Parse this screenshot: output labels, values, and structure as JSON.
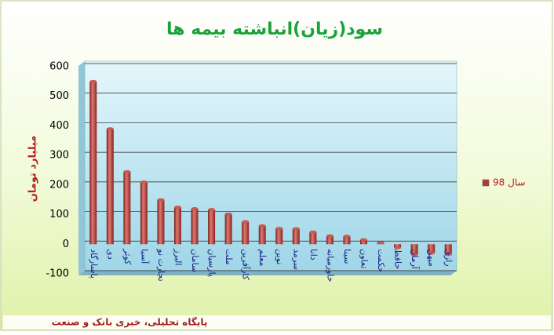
{
  "chart_data": {
    "type": "bar",
    "title": "سود(زیان)انباشته بیمه ها",
    "y_label": "میلیارد تومان",
    "categories": [
      "پاسارگاد",
      "دی",
      "کوثر",
      "آسیا",
      "تجارت نو",
      "البرز",
      "سامان",
      "پارسیان",
      "ملت",
      "کارآفرین",
      "معلم",
      "نوین",
      "سرمد",
      "دانا",
      "خاورمیانه",
      "سینا",
      "تعاون",
      "حکمت",
      "حافظ",
      "آرمان",
      "میهن",
      "رازی"
    ],
    "series": [
      {
        "name": "سال 98",
        "color": "#b33a3a",
        "values": [
          550,
          390,
          245,
          210,
          150,
          125,
          120,
          117,
          102,
          76,
          62,
          53,
          52,
          41,
          28,
          27,
          15,
          5,
          -12,
          -35,
          -30,
          -35
        ]
      }
    ],
    "ylim": [
      -100,
      600
    ],
    "yticks": [
      -100,
      0,
      100,
      200,
      300,
      400,
      500,
      600
    ],
    "grid": true,
    "legend": "right"
  },
  "footer": "پایگاه تحلیلی، خبری بانک و صنعت"
}
